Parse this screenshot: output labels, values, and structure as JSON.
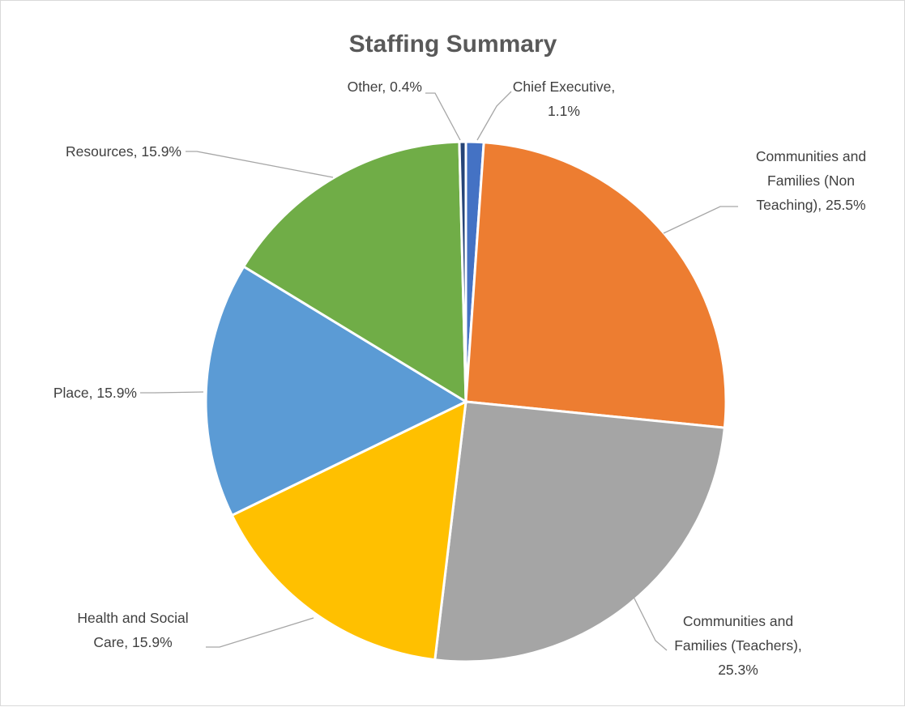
{
  "chart_data": {
    "type": "pie",
    "title": "Staffing Summary",
    "start_angle_deg": 0,
    "direction": "clockwise",
    "slices": [
      {
        "category": "Chief Executive",
        "value": 1.1,
        "label_lines": [
          "Chief Executive,",
          "1.1%"
        ],
        "color": "#4472C4"
      },
      {
        "category": "Communities and Families (Non Teaching)",
        "value": 25.5,
        "label_lines": [
          "Communities and",
          "Families (Non",
          "Teaching), 25.5%"
        ],
        "color": "#ED7D31"
      },
      {
        "category": "Communities and Families (Teachers)",
        "value": 25.3,
        "label_lines": [
          "Communities and",
          "Families (Teachers),",
          "25.3%"
        ],
        "color": "#A5A5A5"
      },
      {
        "category": "Health and Social Care",
        "value": 15.9,
        "label_lines": [
          "Health and Social",
          "Care, 15.9%"
        ],
        "color": "#FFC000"
      },
      {
        "category": "Place",
        "value": 15.9,
        "label_lines": [
          "Place, 15.9%"
        ],
        "color": "#5B9BD5"
      },
      {
        "category": "Resources",
        "value": 15.9,
        "label_lines": [
          "Resources, 15.9%"
        ],
        "color": "#70AD47"
      },
      {
        "category": "Other",
        "value": 0.4,
        "label_lines": [
          "Other, 0.4%"
        ],
        "color": "#264478"
      }
    ],
    "legend": "none",
    "data_labels": "outside with leader lines"
  }
}
